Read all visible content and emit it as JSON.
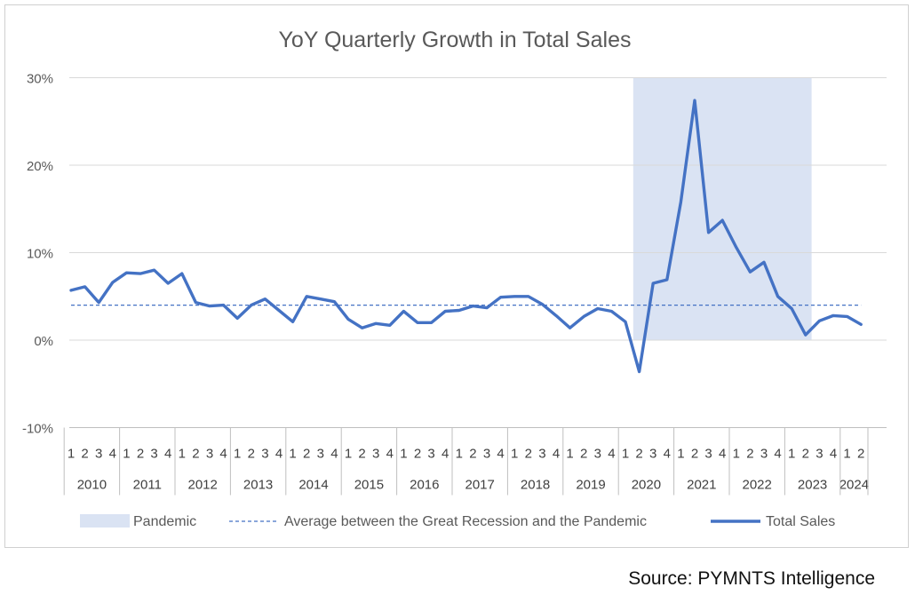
{
  "source": "Source: PYMNTS Intelligence",
  "chart_data": {
    "type": "line",
    "title": "YoY Quarterly Growth in Total Sales",
    "xlabel": "",
    "ylabel": "",
    "ylim": [
      -10,
      30
    ],
    "y_ticks": [
      -10,
      0,
      10,
      20,
      30
    ],
    "y_tick_labels": [
      "-10%",
      "0%",
      "10%",
      "20%",
      "30%"
    ],
    "grid": true,
    "legend_position": "bottom",
    "years": [
      "2010",
      "2011",
      "2012",
      "2013",
      "2014",
      "2015",
      "2016",
      "2017",
      "2018",
      "2019",
      "2020",
      "2021",
      "2022",
      "2023",
      "2024"
    ],
    "quarters_per_year": [
      4,
      4,
      4,
      4,
      4,
      4,
      4,
      4,
      4,
      4,
      4,
      4,
      4,
      4,
      2
    ],
    "quarter_labels": [
      "1",
      "2",
      "3",
      "4"
    ],
    "series": [
      {
        "name": "Total Sales",
        "color": "#4472c4",
        "values": [
          5.7,
          6.1,
          4.3,
          6.6,
          7.7,
          7.6,
          8.0,
          6.5,
          7.6,
          4.3,
          3.9,
          4.0,
          2.5,
          4.0,
          4.7,
          3.4,
          2.1,
          5.0,
          4.7,
          4.4,
          2.4,
          1.4,
          1.9,
          1.7,
          3.3,
          2.0,
          2.0,
          3.3,
          3.4,
          3.9,
          3.7,
          4.9,
          5.0,
          5.0,
          4.1,
          2.8,
          1.4,
          2.7,
          3.6,
          3.3,
          2.1,
          -3.6,
          6.5,
          6.9,
          15.8,
          27.4,
          12.3,
          13.7,
          10.6,
          7.8,
          8.9,
          5.0,
          3.6,
          0.6,
          2.2,
          2.8,
          2.7,
          1.8
        ]
      },
      {
        "name": "Average between the Great Recession and the Pandemic",
        "color": "#4472c4",
        "style": "dashed",
        "value": 4.0
      }
    ],
    "shaded_regions": [
      {
        "name": "Pandemic",
        "color": "#dae3f3",
        "start": "2020 Q2",
        "end": "2023 Q2",
        "y_top": 30,
        "y_bottom": 0
      }
    ]
  }
}
